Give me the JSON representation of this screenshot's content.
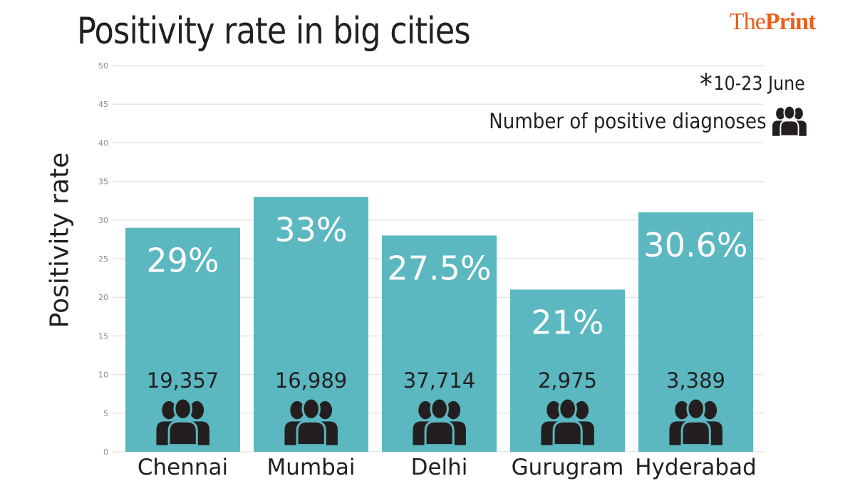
{
  "header": {
    "title": "Positivity rate in big cities",
    "brand_light": "The",
    "brand_bold": "Print",
    "brand_color": "#e8601c"
  },
  "note": {
    "star": "*",
    "text": "10-23 June"
  },
  "legend": {
    "label": "Number of positive diagnoses",
    "icon": "people-group-icon"
  },
  "chart_data": {
    "type": "bar",
    "title": "Positivity rate in big cities",
    "xlabel": "",
    "ylabel": "Positivity rate",
    "ylim": [
      0,
      50
    ],
    "yticks": [
      0,
      5,
      10,
      15,
      20,
      25,
      30,
      35,
      40,
      45,
      50
    ],
    "grid": true,
    "categories": [
      "Chennai",
      "Mumbai",
      "Delhi",
      "Gurugram",
      "Hyderabad"
    ],
    "values": [
      29,
      33,
      28,
      21,
      31
    ],
    "value_labels": [
      "29%",
      "33%",
      "27.5%",
      "21%",
      "30.6%"
    ],
    "positive_diagnoses": [
      "19,357",
      "16,989",
      "37,714",
      "2,975",
      "3,389"
    ],
    "bar_color": "#5bb7c0",
    "annotation": "*10-23 June",
    "legend": "Number of positive diagnoses"
  }
}
